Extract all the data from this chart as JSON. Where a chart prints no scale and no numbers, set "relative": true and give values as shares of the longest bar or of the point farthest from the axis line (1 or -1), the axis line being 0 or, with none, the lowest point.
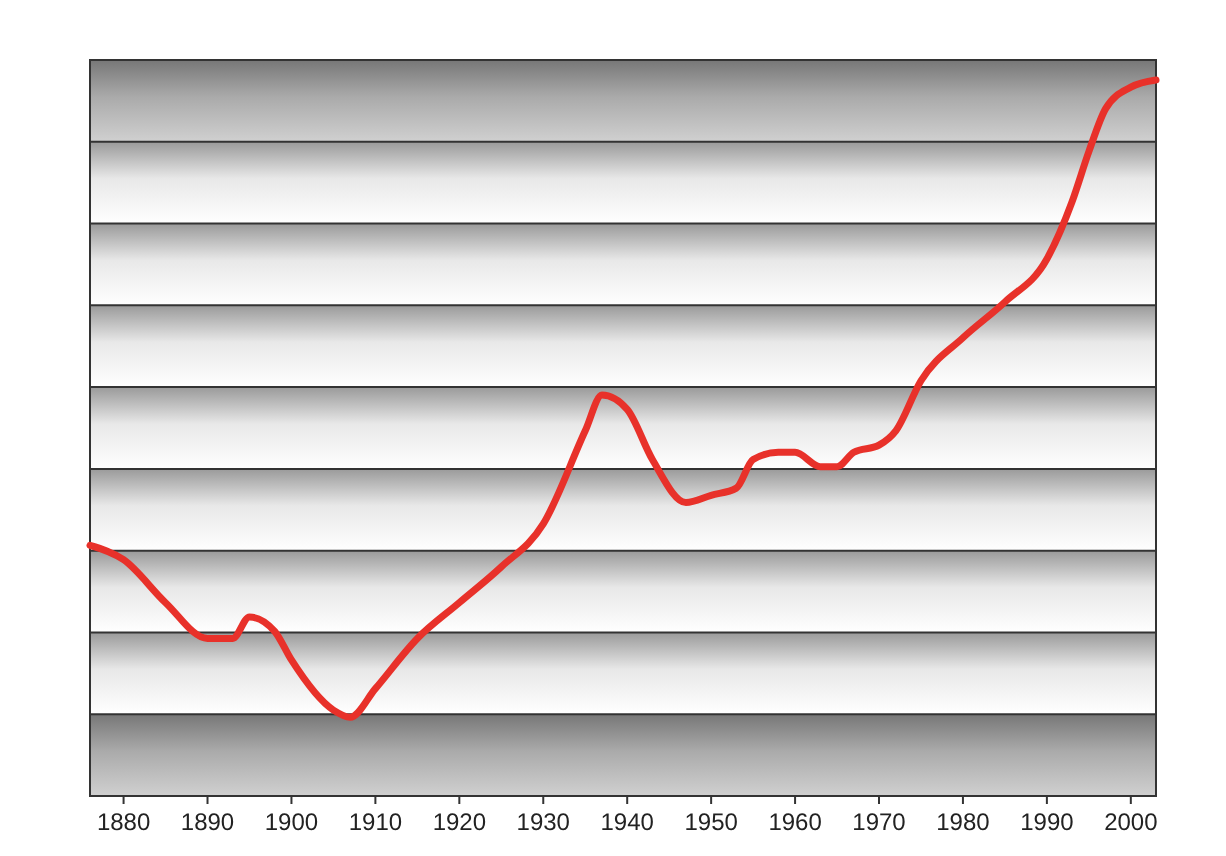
{
  "chart_data": {
    "type": "line",
    "relative": true,
    "grid": true,
    "x": [
      1876,
      1880,
      1885,
      1890,
      1893,
      1895,
      1898,
      1900,
      1905,
      1907,
      1910,
      1915,
      1920,
      1925,
      1930,
      1935,
      1937,
      1940,
      1943,
      1947,
      1950,
      1953,
      1955,
      1958,
      1960,
      1963,
      1965,
      1967,
      1970,
      1972,
      1975,
      1980,
      1985,
      1990,
      1993,
      1995,
      1997,
      2000,
      2003
    ],
    "series": [
      {
        "color": "#e8312a",
        "values": [
          0.35,
          0.33,
          0.27,
          0.22,
          0.22,
          0.25,
          0.23,
          0.19,
          0.12,
          0.11,
          0.15,
          0.22,
          0.27,
          0.32,
          0.38,
          0.51,
          0.56,
          0.54,
          0.47,
          0.41,
          0.42,
          0.43,
          0.47,
          0.48,
          0.48,
          0.46,
          0.46,
          0.48,
          0.49,
          0.51,
          0.58,
          0.64,
          0.69,
          0.75,
          0.83,
          0.9,
          0.96,
          0.99,
          1
        ]
      }
    ],
    "xlim": [
      1876,
      2003
    ],
    "xticks": [
      1880,
      1890,
      1900,
      1910,
      1920,
      1930,
      1940,
      1950,
      1960,
      1970,
      1980,
      1990,
      2000
    ],
    "marker": "none",
    "line_style": "solid"
  }
}
